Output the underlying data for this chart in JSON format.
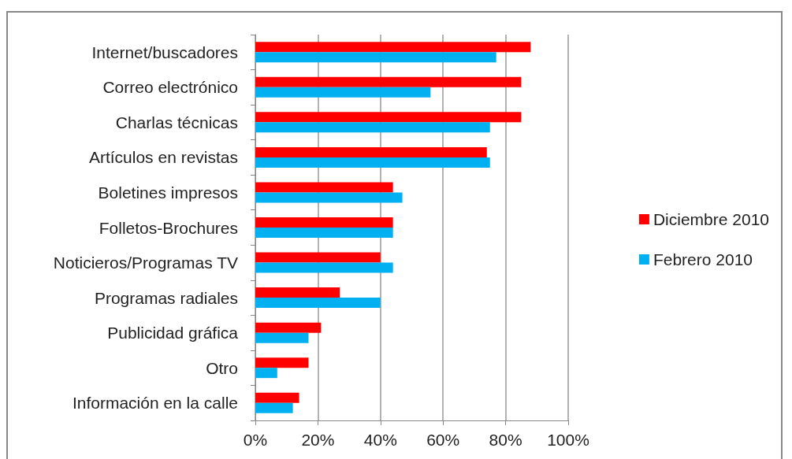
{
  "chart_data": {
    "type": "bar",
    "orientation": "horizontal",
    "categories": [
      "Internet/buscadores",
      "Correo electrónico",
      "Charlas técnicas",
      "Artículos en revistas",
      "Boletines impresos",
      "Folletos-Brochures",
      "Noticieros/Programas TV",
      "Programas radiales",
      "Publicidad gráfica",
      "Otro",
      "Información en la calle"
    ],
    "series": [
      {
        "name": "Diciembre 2010",
        "color": "#ff0000",
        "values": [
          88,
          85,
          85,
          74,
          44,
          44,
          40,
          27,
          21,
          17,
          14
        ]
      },
      {
        "name": "Febrero 2010",
        "color": "#00b0f0",
        "values": [
          77,
          56,
          75,
          75,
          47,
          44,
          44,
          40,
          17,
          7,
          12
        ]
      }
    ],
    "xlim": [
      0,
      100
    ],
    "xticks": [
      {
        "value": 0,
        "label": "0%"
      },
      {
        "value": 20,
        "label": "20%"
      },
      {
        "value": 40,
        "label": "40%"
      },
      {
        "value": 60,
        "label": "60%"
      },
      {
        "value": 80,
        "label": "80%"
      },
      {
        "value": 100,
        "label": "100%"
      }
    ],
    "grid": "x",
    "legend": "right"
  }
}
